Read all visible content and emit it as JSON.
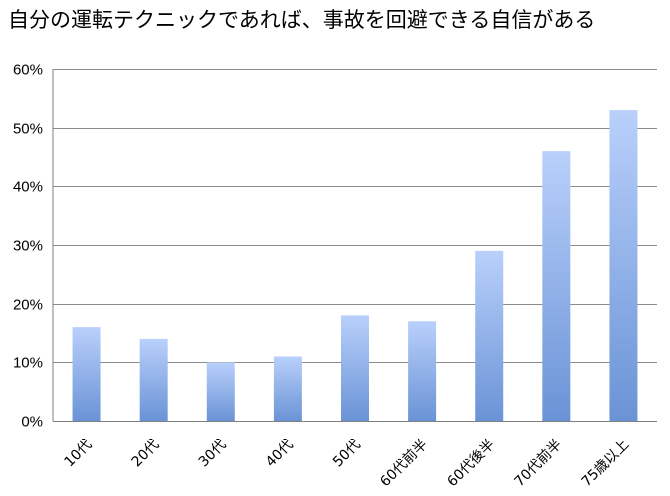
{
  "chart_data": {
    "type": "bar",
    "title": "自分の運転テクニックであれば、事故を回避できる自信がある",
    "categories": [
      "10代",
      "20代",
      "30代",
      "40代",
      "50代",
      "60代前半",
      "60代後半",
      "70代前半",
      "75歳以上"
    ],
    "values": [
      16,
      14,
      10,
      11,
      18,
      17,
      29,
      46,
      53
    ],
    "ylim": [
      0,
      60
    ],
    "yticks": [
      0,
      10,
      20,
      30,
      40,
      50,
      60
    ],
    "ytick_suffix": "%",
    "grid": true,
    "legend": "none",
    "colors": {
      "bar_top": "#b9d0fb",
      "bar_bottom": "#6a93d6",
      "grid": "#8c8c8c",
      "axis": "#7f7f7f"
    }
  }
}
